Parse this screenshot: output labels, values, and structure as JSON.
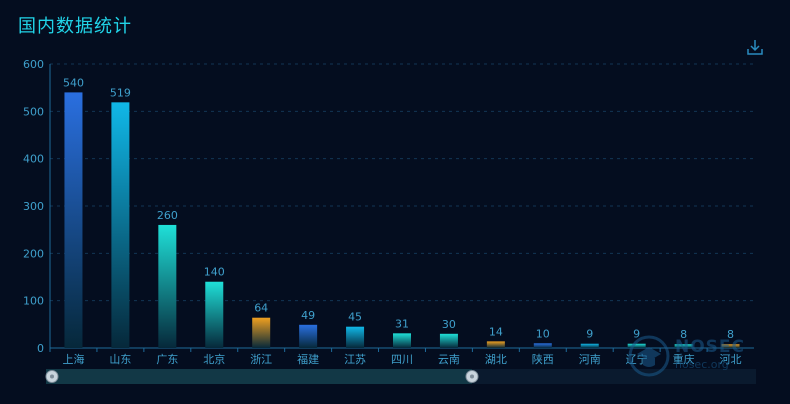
{
  "title": "国内数据统计",
  "toolbar": {
    "download_icon": "download-icon"
  },
  "watermark": {
    "name": "NOSEC",
    "domain": "nosec.org"
  },
  "chart_data": {
    "type": "bar",
    "title": "国内数据统计",
    "xlabel": "",
    "ylabel": "",
    "ylim": [
      0,
      600
    ],
    "yticks": [
      0,
      100,
      200,
      300,
      400,
      500,
      600
    ],
    "grid": true,
    "categories": [
      "上海",
      "山东",
      "广东",
      "北京",
      "浙江",
      "福建",
      "江苏",
      "四川",
      "云南",
      "湖北",
      "陕西",
      "河南",
      "辽宁",
      "重庆",
      "河北"
    ],
    "values": [
      540,
      519,
      260,
      140,
      64,
      49,
      45,
      31,
      30,
      14,
      10,
      9,
      9,
      8,
      8
    ],
    "colors": {
      "blue": "#2a6fe0",
      "cyan": "#10b8e8",
      "teal": "#1fe0d8",
      "orange": "#f0a020",
      "axis": "#1e6a9a",
      "label": "#3fa0cc"
    },
    "bar_colors": [
      "blue",
      "cyan",
      "teal",
      "teal",
      "orange",
      "blue",
      "cyan",
      "teal",
      "teal",
      "orange",
      "blue",
      "cyan",
      "teal",
      "teal",
      "orange"
    ],
    "datazoom": {
      "start": 0,
      "end": 0.6
    }
  }
}
